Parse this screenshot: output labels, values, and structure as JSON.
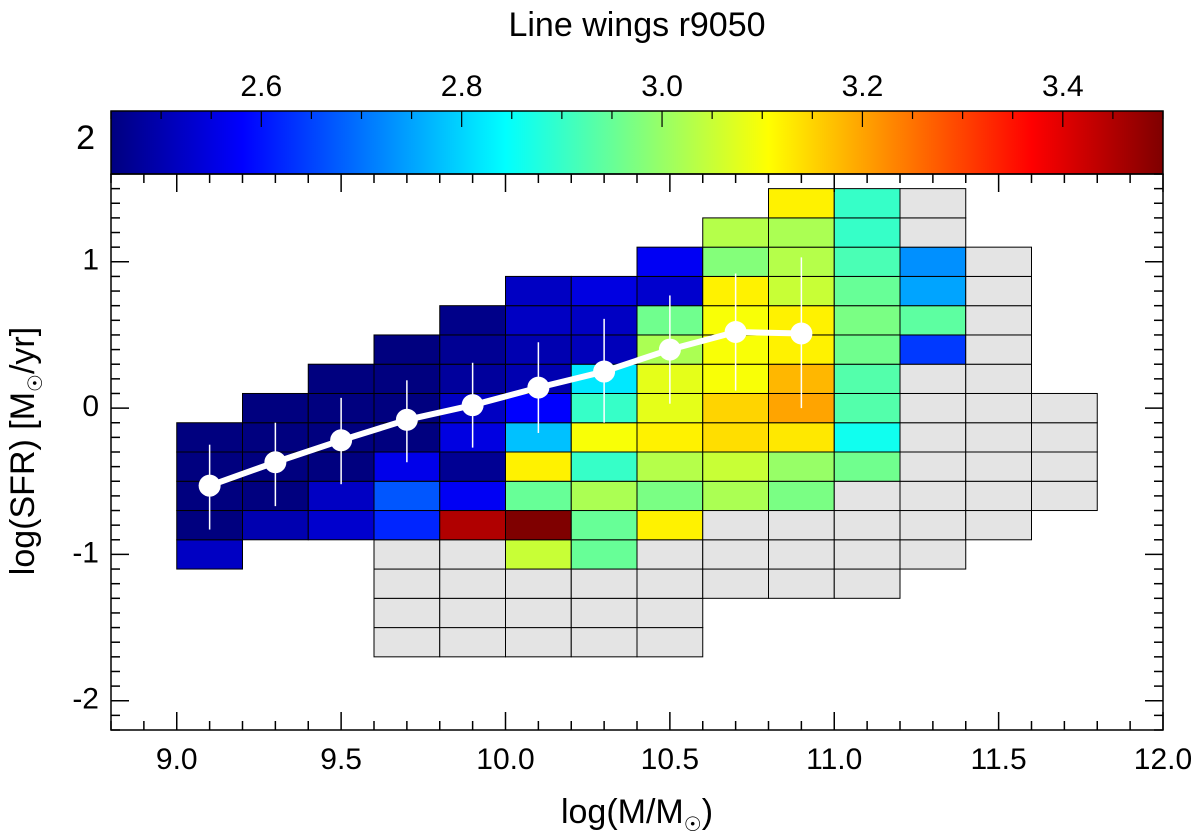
{
  "chart_data": {
    "type": "heatmap",
    "title": "Line wings r9050",
    "xlabel": "log(M/M",
    "xlabel_sub": "☉",
    "xlabel_close": ")",
    "ylabel": "log(SFR) [M",
    "ylabel_sub": "☉",
    "ylabel_close": "/yr]",
    "xlim": [
      8.8,
      12.0
    ],
    "ylim": [
      -2.2,
      1.6
    ],
    "x_ticks": [
      9.0,
      9.5,
      10.0,
      10.5,
      11.0,
      11.5,
      12.0
    ],
    "x_tick_labels": [
      "9.0",
      "9.5",
      "10.0",
      "10.5",
      "11.0",
      "11.5",
      "12.0"
    ],
    "y_ticks": [
      -2,
      -1,
      0,
      1
    ],
    "y_tick_labels": [
      "-2",
      "-1",
      "0",
      "1"
    ],
    "bin_width_x": 0.2,
    "bin_height_y": 0.2,
    "colorbar": {
      "range": [
        2.45,
        3.5
      ],
      "ticks": [
        2.6,
        2.8,
        3.0,
        3.2,
        3.4
      ],
      "tick_labels": [
        "2.6",
        "2.8",
        "3.0",
        "3.2",
        "3.4"
      ],
      "side_label": "2",
      "colors": [
        "#00007f",
        "#0000ff",
        "#007fff",
        "#00ffff",
        "#7fff7f",
        "#ffff00",
        "#ff7f00",
        "#ff0000",
        "#7f0000"
      ]
    },
    "no_data_color": "#e4e4e4",
    "cells": [
      {
        "x": 9.0,
        "y": -1.1,
        "v": 2.52
      },
      {
        "x": 9.0,
        "y": -0.9,
        "v": 2.45
      },
      {
        "x": 9.0,
        "y": -0.7,
        "v": 2.45
      },
      {
        "x": 9.0,
        "y": -0.5,
        "v": 2.45
      },
      {
        "x": 9.0,
        "y": -0.3,
        "v": 2.45
      },
      {
        "x": 9.2,
        "y": -0.9,
        "v": 2.5
      },
      {
        "x": 9.2,
        "y": -0.7,
        "v": 2.45
      },
      {
        "x": 9.2,
        "y": -0.5,
        "v": 2.45
      },
      {
        "x": 9.2,
        "y": -0.3,
        "v": 2.45
      },
      {
        "x": 9.2,
        "y": -0.1,
        "v": 2.45
      },
      {
        "x": 9.4,
        "y": -0.9,
        "v": 2.53
      },
      {
        "x": 9.4,
        "y": -0.7,
        "v": 2.52
      },
      {
        "x": 9.4,
        "y": -0.5,
        "v": 2.45
      },
      {
        "x": 9.4,
        "y": -0.3,
        "v": 2.45
      },
      {
        "x": 9.4,
        "y": -0.1,
        "v": 2.45
      },
      {
        "x": 9.4,
        "y": 0.1,
        "v": 2.45
      },
      {
        "x": 9.6,
        "y": -1.7,
        "v": null
      },
      {
        "x": 9.6,
        "y": -1.5,
        "v": null
      },
      {
        "x": 9.6,
        "y": -1.3,
        "v": null
      },
      {
        "x": 9.6,
        "y": -1.1,
        "v": null
      },
      {
        "x": 9.6,
        "y": -0.9,
        "v": 2.62
      },
      {
        "x": 9.6,
        "y": -0.7,
        "v": 2.67
      },
      {
        "x": 9.6,
        "y": -0.5,
        "v": 2.56
      },
      {
        "x": 9.6,
        "y": -0.3,
        "v": 2.45
      },
      {
        "x": 9.6,
        "y": -0.1,
        "v": 2.45
      },
      {
        "x": 9.6,
        "y": 0.1,
        "v": 2.45
      },
      {
        "x": 9.6,
        "y": 0.3,
        "v": 2.45
      },
      {
        "x": 9.8,
        "y": -1.7,
        "v": null
      },
      {
        "x": 9.8,
        "y": -1.5,
        "v": null
      },
      {
        "x": 9.8,
        "y": -1.3,
        "v": null
      },
      {
        "x": 9.8,
        "y": -1.1,
        "v": null
      },
      {
        "x": 9.8,
        "y": -0.9,
        "v": 3.45
      },
      {
        "x": 9.8,
        "y": -0.7,
        "v": 2.57
      },
      {
        "x": 9.8,
        "y": -0.5,
        "v": 2.47
      },
      {
        "x": 9.8,
        "y": -0.3,
        "v": 2.55
      },
      {
        "x": 9.8,
        "y": -0.1,
        "v": 2.52
      },
      {
        "x": 9.8,
        "y": 0.1,
        "v": 2.48
      },
      {
        "x": 9.8,
        "y": 0.3,
        "v": 2.47
      },
      {
        "x": 9.8,
        "y": 0.5,
        "v": 2.46
      },
      {
        "x": 10.0,
        "y": -1.7,
        "v": null
      },
      {
        "x": 10.0,
        "y": -1.5,
        "v": null
      },
      {
        "x": 10.0,
        "y": -1.3,
        "v": null
      },
      {
        "x": 10.0,
        "y": -1.1,
        "v": 3.05
      },
      {
        "x": 10.0,
        "y": -0.9,
        "v": 3.5
      },
      {
        "x": 10.0,
        "y": -0.7,
        "v": 2.95
      },
      {
        "x": 10.0,
        "y": -0.5,
        "v": 3.12
      },
      {
        "x": 10.0,
        "y": -0.3,
        "v": 2.78
      },
      {
        "x": 10.0,
        "y": -0.1,
        "v": 2.58
      },
      {
        "x": 10.0,
        "y": 0.1,
        "v": 2.5
      },
      {
        "x": 10.0,
        "y": 0.3,
        "v": 2.5
      },
      {
        "x": 10.0,
        "y": 0.5,
        "v": 2.52
      },
      {
        "x": 10.0,
        "y": 0.7,
        "v": 2.52
      },
      {
        "x": 10.2,
        "y": -1.7,
        "v": null
      },
      {
        "x": 10.2,
        "y": -1.5,
        "v": null
      },
      {
        "x": 10.2,
        "y": -1.3,
        "v": null
      },
      {
        "x": 10.2,
        "y": -1.1,
        "v": 2.95
      },
      {
        "x": 10.2,
        "y": -0.9,
        "v": 2.95
      },
      {
        "x": 10.2,
        "y": -0.7,
        "v": 3.02
      },
      {
        "x": 10.2,
        "y": -0.5,
        "v": 2.9
      },
      {
        "x": 10.2,
        "y": -0.3,
        "v": 3.1
      },
      {
        "x": 10.2,
        "y": -0.1,
        "v": 2.9
      },
      {
        "x": 10.2,
        "y": 0.1,
        "v": 2.82
      },
      {
        "x": 10.2,
        "y": 0.3,
        "v": 2.51
      },
      {
        "x": 10.2,
        "y": 0.5,
        "v": 2.52
      },
      {
        "x": 10.2,
        "y": 0.7,
        "v": 2.55
      },
      {
        "x": 10.4,
        "y": -1.7,
        "v": null
      },
      {
        "x": 10.4,
        "y": -1.5,
        "v": null
      },
      {
        "x": 10.4,
        "y": -1.3,
        "v": null
      },
      {
        "x": 10.4,
        "y": -1.1,
        "v": null
      },
      {
        "x": 10.4,
        "y": -0.9,
        "v": 3.12
      },
      {
        "x": 10.4,
        "y": -0.7,
        "v": 2.97
      },
      {
        "x": 10.4,
        "y": -0.5,
        "v": 3.03
      },
      {
        "x": 10.4,
        "y": -0.3,
        "v": 3.12
      },
      {
        "x": 10.4,
        "y": -0.1,
        "v": 3.08
      },
      {
        "x": 10.4,
        "y": 0.1,
        "v": 3.08
      },
      {
        "x": 10.4,
        "y": 0.3,
        "v": 3.02
      },
      {
        "x": 10.4,
        "y": 0.5,
        "v": 2.96
      },
      {
        "x": 10.4,
        "y": 0.7,
        "v": 2.53
      },
      {
        "x": 10.4,
        "y": 0.9,
        "v": 2.57
      },
      {
        "x": 10.6,
        "y": -1.3,
        "v": null
      },
      {
        "x": 10.6,
        "y": -1.1,
        "v": null
      },
      {
        "x": 10.6,
        "y": -0.9,
        "v": null
      },
      {
        "x": 10.6,
        "y": -0.7,
        "v": 3.02
      },
      {
        "x": 10.6,
        "y": -0.5,
        "v": 3.05
      },
      {
        "x": 10.6,
        "y": -0.3,
        "v": 3.14
      },
      {
        "x": 10.6,
        "y": -0.1,
        "v": 3.15
      },
      {
        "x": 10.6,
        "y": 0.1,
        "v": 3.1
      },
      {
        "x": 10.6,
        "y": 0.3,
        "v": 3.1
      },
      {
        "x": 10.6,
        "y": 0.5,
        "v": 3.1
      },
      {
        "x": 10.6,
        "y": 0.7,
        "v": 3.12
      },
      {
        "x": 10.6,
        "y": 0.9,
        "v": 2.98
      },
      {
        "x": 10.6,
        "y": 1.1,
        "v": 3.03
      },
      {
        "x": 10.8,
        "y": -1.3,
        "v": null
      },
      {
        "x": 10.8,
        "y": -1.1,
        "v": null
      },
      {
        "x": 10.8,
        "y": -0.9,
        "v": null
      },
      {
        "x": 10.8,
        "y": -0.7,
        "v": 2.97
      },
      {
        "x": 10.8,
        "y": -0.5,
        "v": 3.0
      },
      {
        "x": 10.8,
        "y": -0.3,
        "v": 3.13
      },
      {
        "x": 10.8,
        "y": -0.1,
        "v": 3.2
      },
      {
        "x": 10.8,
        "y": 0.1,
        "v": 3.18
      },
      {
        "x": 10.8,
        "y": 0.3,
        "v": 3.12
      },
      {
        "x": 10.8,
        "y": 0.5,
        "v": 3.12
      },
      {
        "x": 10.8,
        "y": 0.7,
        "v": 3.05
      },
      {
        "x": 10.8,
        "y": 0.9,
        "v": 3.03
      },
      {
        "x": 10.8,
        "y": 1.1,
        "v": 3.02
      },
      {
        "x": 10.8,
        "y": 1.3,
        "v": 3.12
      },
      {
        "x": 11.0,
        "y": -1.3,
        "v": null
      },
      {
        "x": 11.0,
        "y": -1.1,
        "v": null
      },
      {
        "x": 11.0,
        "y": -0.9,
        "v": null
      },
      {
        "x": 11.0,
        "y": -0.7,
        "v": null
      },
      {
        "x": 11.0,
        "y": -0.5,
        "v": 2.96
      },
      {
        "x": 11.0,
        "y": -0.3,
        "v": 2.86
      },
      {
        "x": 11.0,
        "y": -0.1,
        "v": 2.93
      },
      {
        "x": 11.0,
        "y": 0.1,
        "v": 2.93
      },
      {
        "x": 11.0,
        "y": 0.3,
        "v": 2.96
      },
      {
        "x": 11.0,
        "y": 0.5,
        "v": 2.97
      },
      {
        "x": 11.0,
        "y": 0.7,
        "v": 2.95
      },
      {
        "x": 11.0,
        "y": 0.9,
        "v": 2.92
      },
      {
        "x": 11.0,
        "y": 1.1,
        "v": 2.9
      },
      {
        "x": 11.0,
        "y": 1.3,
        "v": 2.9
      },
      {
        "x": 11.2,
        "y": -1.1,
        "v": null
      },
      {
        "x": 11.2,
        "y": -0.9,
        "v": null
      },
      {
        "x": 11.2,
        "y": -0.7,
        "v": null
      },
      {
        "x": 11.2,
        "y": -0.5,
        "v": null
      },
      {
        "x": 11.2,
        "y": -0.3,
        "v": null
      },
      {
        "x": 11.2,
        "y": -0.1,
        "v": null
      },
      {
        "x": 11.2,
        "y": 0.1,
        "v": null
      },
      {
        "x": 11.2,
        "y": 0.3,
        "v": 2.64
      },
      {
        "x": 11.2,
        "y": 0.5,
        "v": 2.94
      },
      {
        "x": 11.2,
        "y": 0.7,
        "v": 2.75
      },
      {
        "x": 11.2,
        "y": 0.9,
        "v": 2.73
      },
      {
        "x": 11.2,
        "y": 1.1,
        "v": null
      },
      {
        "x": 11.2,
        "y": 1.3,
        "v": null
      },
      {
        "x": 11.4,
        "y": -0.9,
        "v": null
      },
      {
        "x": 11.4,
        "y": -0.7,
        "v": null
      },
      {
        "x": 11.4,
        "y": -0.5,
        "v": null
      },
      {
        "x": 11.4,
        "y": -0.3,
        "v": null
      },
      {
        "x": 11.4,
        "y": -0.1,
        "v": null
      },
      {
        "x": 11.4,
        "y": 0.1,
        "v": null
      },
      {
        "x": 11.4,
        "y": 0.3,
        "v": null
      },
      {
        "x": 11.4,
        "y": 0.5,
        "v": null
      },
      {
        "x": 11.4,
        "y": 0.7,
        "v": null
      },
      {
        "x": 11.4,
        "y": 0.9,
        "v": null
      },
      {
        "x": 11.6,
        "y": -0.7,
        "v": null
      },
      {
        "x": 11.6,
        "y": -0.5,
        "v": null
      },
      {
        "x": 11.6,
        "y": -0.3,
        "v": null
      },
      {
        "x": 11.6,
        "y": -0.1,
        "v": null
      }
    ],
    "median_series": {
      "x": [
        9.1,
        9.3,
        9.5,
        9.7,
        9.9,
        10.1,
        10.3,
        10.5,
        10.7,
        10.9
      ],
      "y": [
        -0.53,
        -0.37,
        -0.22,
        -0.08,
        0.02,
        0.14,
        0.25,
        0.4,
        0.52,
        0.51
      ],
      "y_low": [
        -0.83,
        -0.67,
        -0.52,
        -0.37,
        -0.27,
        -0.17,
        -0.1,
        0.03,
        0.12,
        0.0
      ],
      "y_high": [
        -0.25,
        -0.1,
        0.07,
        0.19,
        0.31,
        0.45,
        0.61,
        0.77,
        0.92,
        1.03
      ],
      "color": "#ffffff"
    }
  }
}
